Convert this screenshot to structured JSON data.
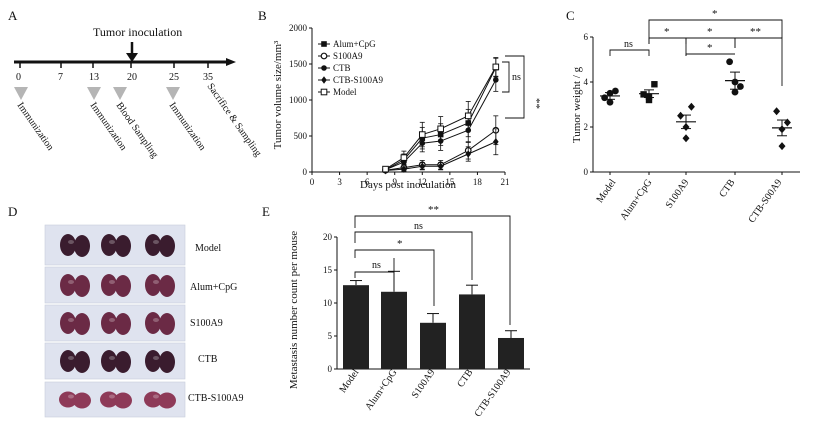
{
  "panel_letters": {
    "a": "A",
    "b": "B",
    "c": "C",
    "d": "D",
    "e": "E"
  },
  "panel_a": {
    "event_label": "Tumor inoculation",
    "days": [
      "0",
      "7",
      "13",
      "20",
      "25",
      "35"
    ],
    "events": [
      "Immunization",
      "Immunization",
      "Blood Sampling",
      "Immunization",
      "Sacrifice & Sampling"
    ]
  },
  "photos": {
    "labels": [
      "Model",
      "Alum+CpG",
      "S100A9",
      "CTB",
      "CTB-S100A9"
    ],
    "colors": {
      "dark": "#3a1c2e",
      "mid": "#6b2a45",
      "light": "#8e3a58",
      "background": "#dfe3ef"
    }
  },
  "colors": {
    "bar": "#222222",
    "axis": "#111111",
    "text": "#111111"
  },
  "chart_data": [
    {
      "id": "B",
      "type": "line",
      "xlabel": "Days post inoculation",
      "ylabel": "Tumor volume size/mm³",
      "xlim": [
        0,
        21
      ],
      "ylim": [
        0,
        2000
      ],
      "xticks": [
        0,
        3,
        6,
        9,
        12,
        15,
        18,
        21
      ],
      "yticks": [
        0,
        500,
        1000,
        1500,
        2000
      ],
      "x": [
        8,
        10,
        12,
        14,
        17,
        20
      ],
      "series": [
        {
          "name": "Alum+CpG",
          "marker": "square",
          "values": [
            30,
            170,
            470,
            520,
            680,
            1450
          ],
          "errors": [
            25,
            80,
            150,
            150,
            190,
            130
          ]
        },
        {
          "name": "S100A9",
          "marker": "circle-open",
          "values": [
            25,
            60,
            100,
            100,
            300,
            580
          ],
          "errors": [
            20,
            40,
            60,
            60,
            120,
            200
          ]
        },
        {
          "name": "CTB",
          "marker": "circle",
          "values": [
            30,
            140,
            400,
            430,
            580,
            1280
          ],
          "errors": [
            25,
            70,
            120,
            130,
            170,
            160
          ]
        },
        {
          "name": "CTB-S100A9",
          "marker": "diamond",
          "values": [
            20,
            40,
            80,
            80,
            250,
            420
          ],
          "errors": [
            15,
            30,
            50,
            50,
            100,
            180
          ]
        },
        {
          "name": "Model",
          "marker": "square-open",
          "values": [
            40,
            200,
            520,
            600,
            780,
            1460
          ],
          "errors": [
            30,
            90,
            170,
            170,
            200,
            130
          ]
        }
      ],
      "annotations": [
        "ns",
        "**"
      ]
    },
    {
      "id": "C",
      "type": "scatter",
      "ylabel": "Tumor weight / g",
      "ylim": [
        0,
        6
      ],
      "yticks": [
        0,
        2,
        4,
        6
      ],
      "categories": [
        "Model",
        "Alum+CpG",
        "S100A9",
        "CTB",
        "CTB-S00A9"
      ],
      "points": [
        [
          3.3,
          3.6,
          3.1,
          3.5
        ],
        [
          3.45,
          3.9,
          3.2,
          3.35
        ],
        [
          2.5,
          2.9,
          1.5,
          2.0
        ],
        [
          4.9,
          3.8,
          3.55,
          4.0
        ],
        [
          2.7,
          2.2,
          1.9,
          1.15
        ]
      ],
      "means": [
        3.38,
        3.48,
        2.23,
        4.06,
        1.96
      ],
      "sem": [
        0.15,
        0.17,
        0.3,
        0.38,
        0.35
      ],
      "annotations": [
        "ns",
        "*",
        "*",
        "*",
        "**",
        "*"
      ]
    },
    {
      "id": "E",
      "type": "bar",
      "ylabel": "Metastasis number count per mouse",
      "ylim": [
        0,
        20
      ],
      "yticks": [
        0,
        5,
        10,
        15,
        20
      ],
      "categories": [
        "Model",
        "Alum+CpG",
        "S100A9",
        "CTB",
        "CTB-S100A9"
      ],
      "values": [
        12.7,
        11.7,
        7.0,
        11.3,
        4.7
      ],
      "errors": [
        0.7,
        3.1,
        1.4,
        1.4,
        1.1
      ],
      "annotations": [
        "ns",
        "*",
        "ns",
        "**"
      ]
    }
  ]
}
